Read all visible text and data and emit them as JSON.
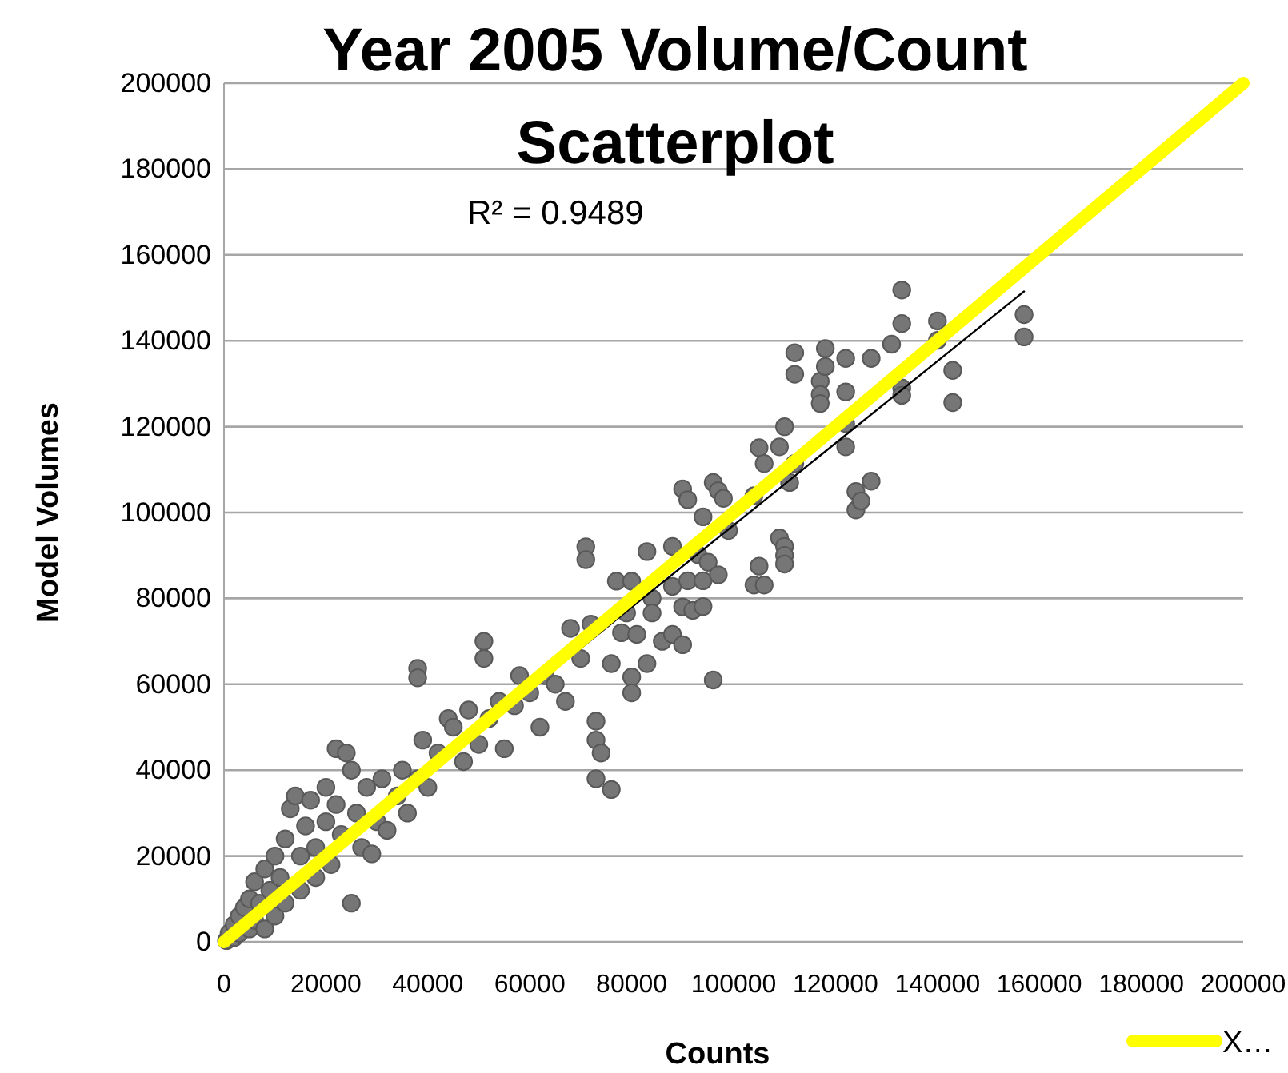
{
  "chart_data": {
    "type": "scatter",
    "title": "Year 2005 Volume/Count Scatterplot",
    "xlabel": "Counts",
    "ylabel": "Model Volumes",
    "annotations": [
      "R² = 0.9489"
    ],
    "xlim": [
      0,
      200000
    ],
    "ylim": [
      0,
      200000
    ],
    "xticks": [
      0,
      20000,
      40000,
      60000,
      80000,
      100000,
      120000,
      140000,
      160000,
      180000,
      200000
    ],
    "yticks": [
      0,
      20000,
      40000,
      60000,
      80000,
      100000,
      120000,
      140000,
      160000,
      180000,
      200000
    ],
    "grid": "y",
    "legend": "bottom right",
    "series": [
      {
        "marker": "circle",
        "color": "#767676",
        "x": [
          500,
          1000,
          2000,
          2000,
          3000,
          3000,
          4000,
          5000,
          5000,
          6000,
          6000,
          7000,
          8000,
          8000,
          9000,
          10000,
          10000,
          11000,
          12000,
          12000,
          13000,
          14000,
          15000,
          15000,
          16000,
          17000,
          18000,
          18000,
          20000,
          20000,
          21000,
          22000,
          22000,
          23000,
          24000,
          25000,
          25000,
          26000,
          27000,
          28000,
          29000,
          30000,
          31000,
          32000,
          34000,
          35000,
          36000,
          38000,
          38000,
          38000,
          39000,
          40000,
          42000,
          44000,
          45000,
          47000,
          48000,
          50000,
          51000,
          51000,
          52000,
          54000,
          55000,
          57000,
          58000,
          60000,
          62000,
          63000,
          65000,
          67000,
          68000,
          70000,
          71000,
          71000,
          72000,
          73000,
          73000,
          73000,
          74000,
          76000,
          76000,
          77000,
          78000,
          79000,
          80000,
          80000,
          80000,
          81000,
          83000,
          83000,
          84000,
          84000,
          86000,
          88000,
          88000,
          88000,
          90000,
          90000,
          90000,
          91000,
          91000,
          92000,
          93000,
          94000,
          94000,
          94000,
          95000,
          96000,
          96000,
          97000,
          97000,
          98000,
          99000,
          104000,
          104000,
          105000,
          105000,
          106000,
          106000,
          109000,
          109000,
          110000,
          110000,
          110000,
          110000,
          111000,
          112000,
          112000,
          112000,
          117000,
          117000,
          117000,
          118000,
          118000,
          122000,
          122000,
          122000,
          122000,
          124000,
          124000,
          125000,
          127000,
          127000,
          131000,
          133000,
          133000,
          133000,
          133000,
          140000,
          140000,
          143000,
          143000,
          157000,
          157000
        ],
        "values": [
          300,
          2000,
          1000,
          4000,
          6000,
          2000,
          8000,
          3000,
          10000,
          5000,
          14000,
          9000,
          3000,
          17000,
          12000,
          6000,
          20000,
          15000,
          9000,
          24000,
          31000,
          34000,
          20000,
          12000,
          27000,
          33000,
          15000,
          22000,
          28000,
          36000,
          18000,
          32000,
          45000,
          25000,
          44000,
          40000,
          9000,
          30000,
          22000,
          36000,
          20500,
          28000,
          38000,
          26000,
          34000,
          40000,
          30000,
          38000,
          63700,
          61500,
          47000,
          36000,
          44000,
          52000,
          50000,
          42000,
          54000,
          46000,
          70000,
          66000,
          52000,
          56000,
          45000,
          55000,
          62000,
          58000,
          50000,
          62000,
          60000,
          56000,
          73000,
          66000,
          92000,
          89000,
          74000,
          51400,
          47000,
          38000,
          44000,
          35500,
          64800,
          84000,
          72000,
          76600,
          84000,
          61700,
          58000,
          71600,
          64800,
          90900,
          80000,
          76600,
          70000,
          92100,
          82800,
          71600,
          69200,
          78000,
          105500,
          103000,
          84100,
          77200,
          90200,
          99000,
          78100,
          84100,
          88400,
          61000,
          107000,
          105100,
          85500,
          103300,
          95800,
          103900,
          83100,
          115100,
          87500,
          111400,
          83100,
          115300,
          94100,
          92100,
          120000,
          90000,
          88000,
          107000,
          111400,
          132200,
          137200,
          130600,
          127500,
          125400,
          138200,
          134000,
          135900,
          128100,
          120700,
          115300,
          104900,
          100600,
          102700,
          135900,
          107300,
          139200,
          151800,
          144000,
          129000,
          127300,
          144600,
          140100,
          133100,
          125600,
          146100,
          140900
        ]
      },
      {
        "type": "line",
        "marker": "none",
        "color": "#000000",
        "x": [
          0,
          157000
        ],
        "values": [
          1500,
          151500
        ]
      },
      {
        "type": "line",
        "marker": "none",
        "name": "X…",
        "color": "#ffff00",
        "x": [
          0,
          200000
        ],
        "values": [
          0,
          200000
        ]
      }
    ]
  }
}
